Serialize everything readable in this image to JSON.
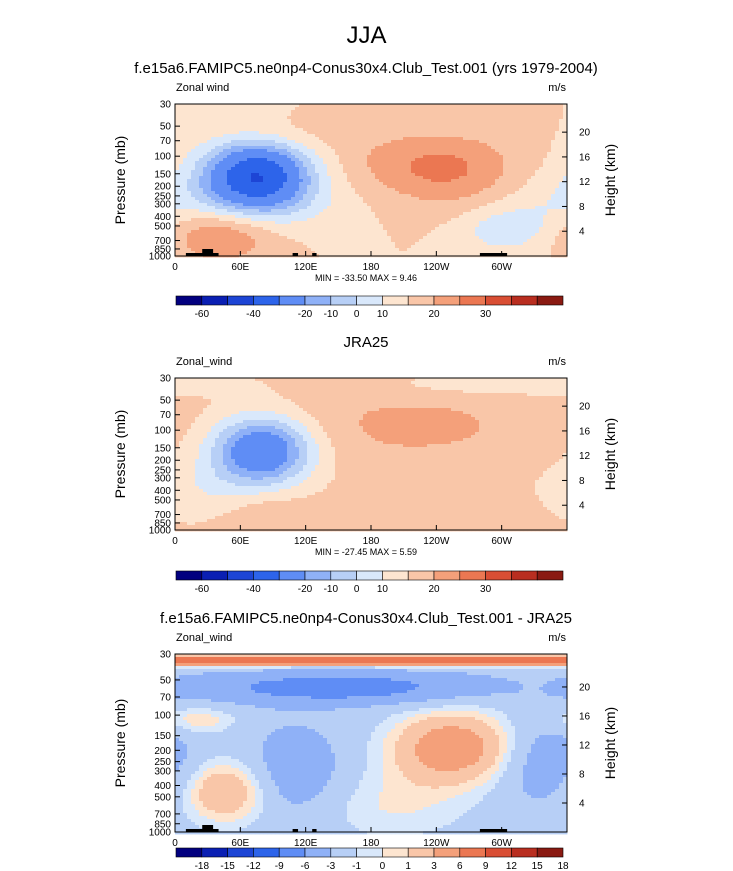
{
  "main_title": "JJA",
  "palette": {
    "abs": [
      "#02007f",
      "#0a1fb3",
      "#1d45d5",
      "#2d64ea",
      "#5f8df5",
      "#8fb1f7",
      "#b7cff6",
      "#d9e8fb",
      "#fde5d0",
      "#f9c6a8",
      "#f4a07a",
      "#eb7752",
      "#d94e34",
      "#b92e20",
      "#8a1a12"
    ],
    "diff": [
      "#02007f",
      "#0a1fb3",
      "#1d45d5",
      "#2d64ea",
      "#5f8df5",
      "#8fb1f7",
      "#b7cff6",
      "#d9e8fb",
      "#fde5d0",
      "#f9c6a8",
      "#f4a07a",
      "#eb7752",
      "#d94e34",
      "#b92e20",
      "#8a1a12"
    ]
  },
  "chart_data": [
    {
      "type": "heatmap",
      "title": "f.e15a6.FAMIPC5.ne0np4-Conus30x4.Club_Test.001 (yrs 1979-2004)",
      "left_label": "Zonal wind",
      "right_label": "m/s",
      "xlabel": "",
      "ylabel": "Pressure (mb)",
      "ylabel_right": "Height (km)",
      "x_ticks": [
        "0",
        "60E",
        "120E",
        "180",
        "120W",
        "60W"
      ],
      "x_tick_values": [
        0,
        60,
        120,
        180,
        240,
        300
      ],
      "xlim": [
        0,
        360
      ],
      "y_ticks": [
        "30",
        "50",
        "70",
        "100",
        "150",
        "200",
        "250",
        "300",
        "400",
        "500",
        "700",
        "850",
        "1000"
      ],
      "y_tick_values": [
        30,
        50,
        70,
        100,
        150,
        200,
        250,
        300,
        400,
        500,
        700,
        850,
        1000
      ],
      "ylim": [
        30,
        1000
      ],
      "height_ticks": [
        "20",
        "16",
        "12",
        "8",
        "4"
      ],
      "height_tick_values": [
        20,
        16,
        12,
        8,
        4
      ],
      "stats": "MIN = -33.50   MAX =  9.46",
      "colorbar_labels": [
        "-60",
        "-40",
        "-20",
        "-10",
        "0",
        "10",
        "20",
        "30"
      ],
      "colorbar_label_bounds": [
        1,
        3,
        5,
        6,
        7,
        8,
        10,
        12
      ],
      "levels": [
        -70,
        -60,
        -50,
        -40,
        -30,
        -20,
        -15,
        -10,
        -5,
        0,
        5,
        10,
        15,
        20,
        25,
        30
      ],
      "background": 0,
      "features": [
        {
          "lon": 75,
          "p": 155,
          "sx": 34,
          "sy": 0.55,
          "amp": -38
        },
        {
          "lon": 255,
          "p": 145,
          "sx": 48,
          "sy": 0.6,
          "amp": 9
        },
        {
          "lon": 210,
          "p": 110,
          "sx": 50,
          "sy": 0.5,
          "amp": 4
        },
        {
          "lon": 40,
          "p": 600,
          "sx": 36,
          "sy": 0.45,
          "amp": 12
        },
        {
          "lon": 70,
          "p": 300,
          "sx": 60,
          "sy": 0.5,
          "amp": -6
        },
        {
          "lon": 300,
          "p": 550,
          "sx": 28,
          "sy": 0.35,
          "amp": -7
        },
        {
          "lon": 100,
          "p": 60,
          "sx": 40,
          "sy": 0.3,
          "amp": 3
        },
        {
          "lon": 340,
          "p": 350,
          "sx": 40,
          "sy": 0.7,
          "amp": -4
        }
      ],
      "land_segments": [
        [
          10,
          40
        ],
        [
          25,
          35
        ],
        [
          108,
          113
        ],
        [
          126,
          130
        ],
        [
          280,
          305
        ]
      ]
    },
    {
      "type": "heatmap",
      "title": "JRA25",
      "left_label": "Zonal_wind",
      "right_label": "m/s",
      "xlabel": "",
      "ylabel": "Pressure (mb)",
      "ylabel_right": "Height (km)",
      "x_ticks": [
        "0",
        "60E",
        "120E",
        "180",
        "120W",
        "60W"
      ],
      "x_tick_values": [
        0,
        60,
        120,
        180,
        240,
        300
      ],
      "xlim": [
        0,
        360
      ],
      "y_ticks": [
        "30",
        "50",
        "70",
        "100",
        "150",
        "200",
        "250",
        "300",
        "400",
        "500",
        "700",
        "850",
        "1000"
      ],
      "y_tick_values": [
        30,
        50,
        70,
        100,
        150,
        200,
        250,
        300,
        400,
        500,
        700,
        850,
        1000
      ],
      "ylim": [
        30,
        1000
      ],
      "height_ticks": [
        "20",
        "16",
        "12",
        "8",
        "4"
      ],
      "height_tick_values": [
        20,
        16,
        12,
        8,
        4
      ],
      "stats": "MIN = -27.45   MAX =  5.59",
      "colorbar_labels": [
        "-60",
        "-40",
        "-20",
        "-10",
        "0",
        "10",
        "20",
        "30"
      ],
      "colorbar_label_bounds": [
        1,
        3,
        5,
        6,
        7,
        8,
        10,
        12
      ],
      "levels": [
        -70,
        -60,
        -50,
        -40,
        -30,
        -20,
        -15,
        -10,
        -5,
        0,
        5,
        10,
        15,
        20,
        25,
        30
      ],
      "background": 1,
      "features": [
        {
          "lon": 80,
          "p": 160,
          "sx": 32,
          "sy": 0.55,
          "amp": -30
        },
        {
          "lon": 220,
          "p": 90,
          "sx": 90,
          "sy": 0.7,
          "amp": 5
        },
        {
          "lon": 30,
          "p": 400,
          "sx": 40,
          "sy": 0.5,
          "amp": -5
        },
        {
          "lon": 80,
          "p": 650,
          "sx": 30,
          "sy": 0.4,
          "amp": 4
        },
        {
          "lon": 250,
          "p": 600,
          "sx": 60,
          "sy": 0.4,
          "amp": 2
        },
        {
          "lon": 300,
          "p": 35,
          "sx": 80,
          "sy": 0.2,
          "amp": -5
        }
      ],
      "land_segments": []
    },
    {
      "type": "heatmap",
      "title": "f.e15a6.FAMIPC5.ne0np4-Conus30x4.Club_Test.001 - JRA25",
      "left_label": "Zonal_wind",
      "right_label": "m/s",
      "xlabel": "",
      "ylabel": "Pressure (mb)",
      "ylabel_right": "Height (km)",
      "x_ticks": [
        "0",
        "60E",
        "120E",
        "180",
        "120W",
        "60W"
      ],
      "x_tick_values": [
        0,
        60,
        120,
        180,
        240,
        300
      ],
      "xlim": [
        0,
        360
      ],
      "y_ticks": [
        "30",
        "50",
        "70",
        "100",
        "150",
        "200",
        "250",
        "300",
        "400",
        "500",
        "700",
        "850",
        "1000"
      ],
      "y_tick_values": [
        30,
        50,
        70,
        100,
        150,
        200,
        250,
        300,
        400,
        500,
        700,
        850,
        1000
      ],
      "ylim": [
        30,
        1000
      ],
      "height_ticks": [
        "20",
        "16",
        "12",
        "8",
        "4"
      ],
      "height_tick_values": [
        20,
        16,
        12,
        8,
        4
      ],
      "stats": "MIN = -7.46   MAX =  6.18",
      "colorbar_labels": [
        "-18",
        "-15",
        "-12",
        "-9",
        "-6",
        "-3",
        "-1",
        "0",
        "1",
        "3",
        "6",
        "9",
        "12",
        "15",
        "18"
      ],
      "colorbar_label_bounds": [
        1,
        2,
        3,
        4,
        5,
        6,
        7,
        8,
        9,
        10,
        11,
        12,
        13,
        14,
        15
      ],
      "levels": [
        -21,
        -18,
        -15,
        -12,
        -9,
        -6,
        -3,
        -1,
        0,
        1,
        3,
        6,
        9,
        12,
        15,
        18
      ],
      "background": -2,
      "features": [
        {
          "lon": 150,
          "p": 58,
          "sx": 90,
          "sy": 0.22,
          "amp": -6
        },
        {
          "lon": 255,
          "p": 190,
          "sx": 40,
          "sy": 0.5,
          "amp": 7
        },
        {
          "lon": 45,
          "p": 450,
          "sx": 28,
          "sy": 0.45,
          "amp": 5
        },
        {
          "lon": 180,
          "p": 34,
          "sx": 400,
          "sy": 0.08,
          "amp": 10
        },
        {
          "lon": 20,
          "p": 110,
          "sx": 25,
          "sy": 0.2,
          "amp": 3
        },
        {
          "lon": 110,
          "p": 300,
          "sx": 30,
          "sy": 0.6,
          "amp": -3
        },
        {
          "lon": 200,
          "p": 600,
          "sx": 50,
          "sy": 0.5,
          "amp": 2
        },
        {
          "lon": 340,
          "p": 250,
          "sx": 30,
          "sy": 0.6,
          "amp": -3
        }
      ],
      "land_segments": [
        [
          10,
          40
        ],
        [
          25,
          35
        ],
        [
          108,
          113
        ],
        [
          126,
          130
        ],
        [
          280,
          305
        ]
      ]
    }
  ]
}
